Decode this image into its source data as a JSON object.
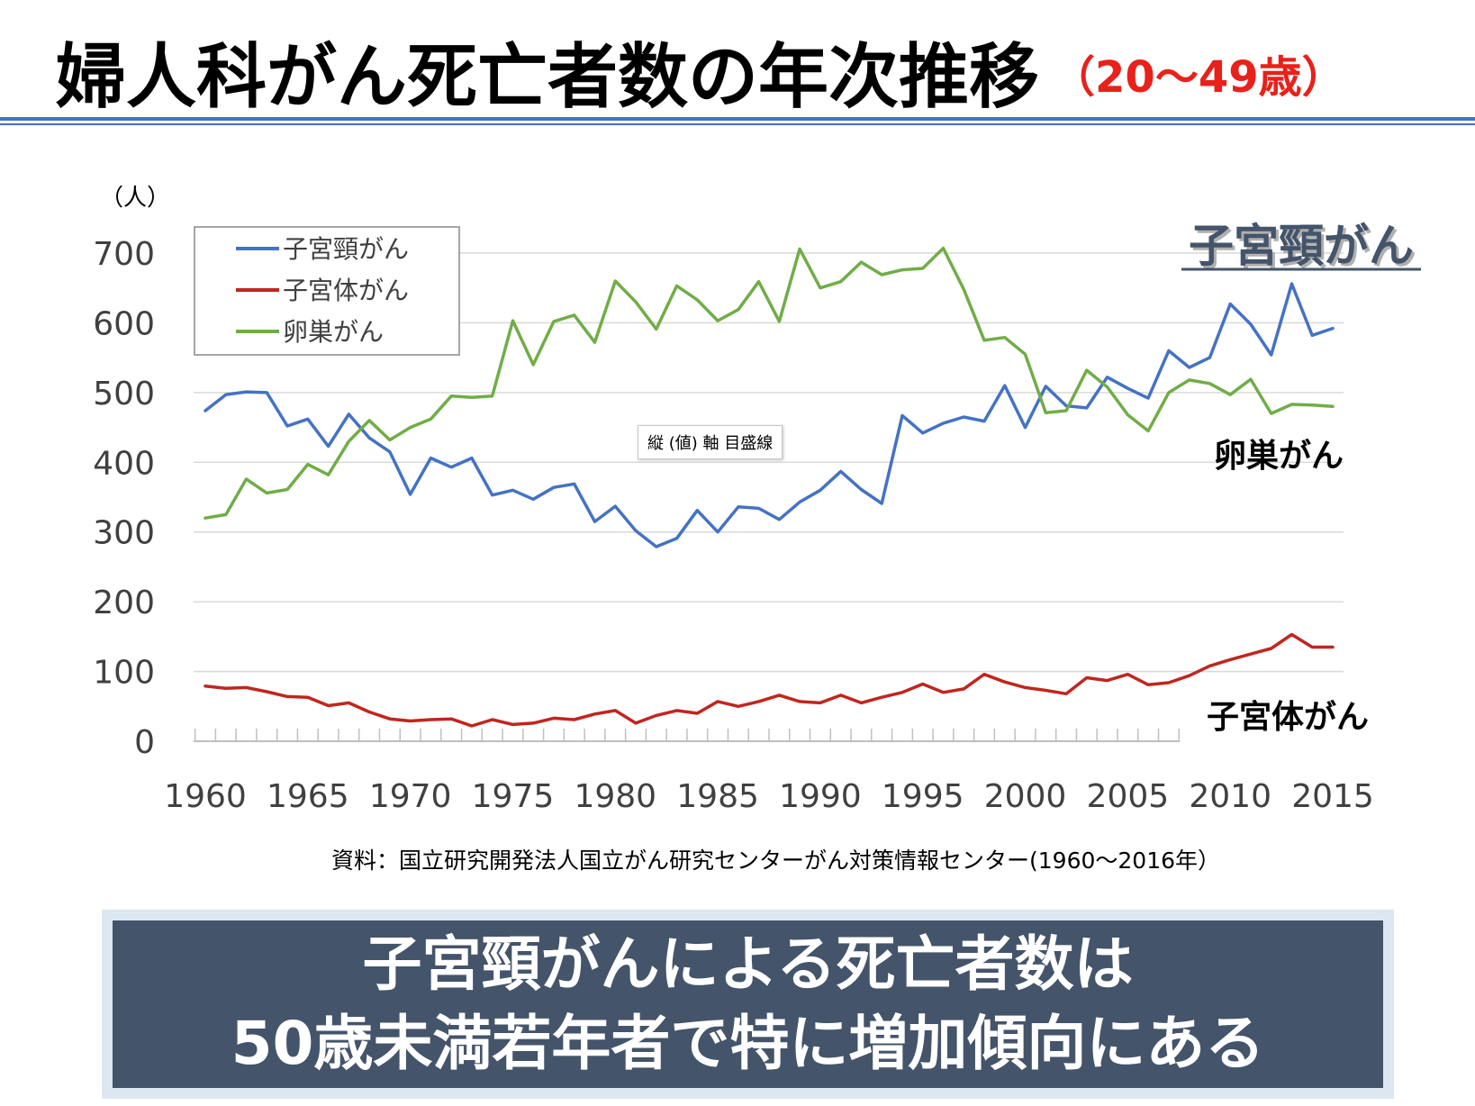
{
  "header": {
    "title": "婦人科がん死亡者数の年次推移",
    "subtitle": "（20〜49歳）"
  },
  "colors": {
    "cervical": "#4472c4",
    "endometrial": "#c0261f",
    "ovarian": "#70ad47",
    "subtitle": "#e8211b",
    "conclusion_bg": "#44546a"
  },
  "chart_data": {
    "type": "line",
    "y_unit": "（人）",
    "ylim": [
      0,
      700
    ],
    "y_ticks": [
      0,
      100,
      200,
      300,
      400,
      500,
      600,
      700
    ],
    "xlim": [
      1960,
      2015
    ],
    "x_ticks": [
      1960,
      1965,
      1970,
      1975,
      1980,
      1985,
      1990,
      1995,
      2000,
      2005,
      2010,
      2015
    ],
    "grid": true,
    "legend_position": "top-left",
    "x": [
      1960,
      1961,
      1962,
      1963,
      1964,
      1965,
      1966,
      1967,
      1968,
      1969,
      1970,
      1971,
      1972,
      1973,
      1974,
      1975,
      1976,
      1977,
      1978,
      1979,
      1980,
      1981,
      1982,
      1983,
      1984,
      1985,
      1986,
      1987,
      1988,
      1989,
      1990,
      1991,
      1992,
      1993,
      1994,
      1995,
      1996,
      1997,
      1998,
      1999,
      2000,
      2001,
      2002,
      2003,
      2004,
      2005,
      2006,
      2007,
      2008,
      2009,
      2010,
      2011,
      2012,
      2013,
      2014,
      2015
    ],
    "series": [
      {
        "name": "子宮頸がん",
        "end_label": "子宮頸がん",
        "values": [
          474,
          497,
          501,
          500,
          452,
          462,
          423,
          469,
          435,
          415,
          354,
          406,
          393,
          406,
          353,
          360,
          347,
          364,
          369,
          315,
          337,
          302,
          279,
          291,
          331,
          300,
          336,
          334,
          318,
          343,
          360,
          387,
          361,
          341,
          467,
          442,
          456,
          465,
          459,
          510,
          450,
          509,
          481,
          478,
          522,
          506,
          492,
          560,
          536,
          550,
          627,
          598,
          554,
          656,
          582,
          592
        ]
      },
      {
        "name": "子宮体がん",
        "end_label": "子宮体がん",
        "values": [
          79,
          76,
          77,
          71,
          64,
          63,
          51,
          55,
          42,
          32,
          29,
          31,
          32,
          22,
          31,
          24,
          26,
          33,
          31,
          39,
          44,
          26,
          37,
          44,
          40,
          57,
          50,
          57,
          66,
          57,
          55,
          66,
          55,
          63,
          70,
          82,
          70,
          75,
          96,
          85,
          77,
          73,
          68,
          91,
          87,
          96,
          81,
          84,
          94,
          108,
          117,
          125,
          133,
          153,
          135,
          135
        ]
      },
      {
        "name": "卵巣がん",
        "end_label": "卵巣がん",
        "values": [
          320,
          325,
          376,
          356,
          361,
          397,
          382,
          430,
          460,
          432,
          450,
          462,
          495,
          493,
          495,
          603,
          540,
          602,
          611,
          572,
          660,
          630,
          591,
          653,
          633,
          603,
          619,
          659,
          602,
          706,
          650,
          659,
          687,
          669,
          676,
          678,
          707,
          648,
          575,
          579,
          555,
          471,
          474,
          532,
          508,
          468,
          445,
          500,
          518,
          513,
          497,
          519,
          470,
          483,
          482,
          480
        ]
      }
    ]
  },
  "tooltip": "縦 (値) 軸 目盛線",
  "source": "資料：国立研究開発法人国立がん研究センターがん対策情報センター(1960〜2016年）",
  "conclusion": {
    "line1": "子宮頸がんによる死亡者数は",
    "line2": "50歳未満若年者で特に増加傾向にある"
  }
}
